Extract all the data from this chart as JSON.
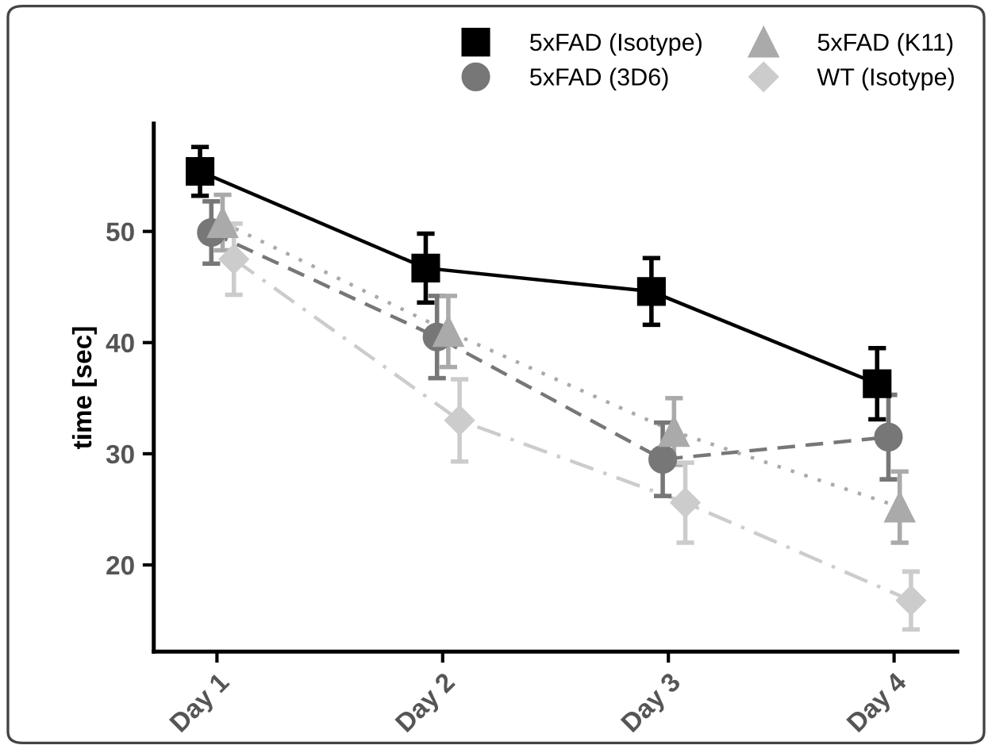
{
  "chart_data": {
    "type": "line",
    "ylabel": "time [sec]",
    "categories": [
      "Day 1",
      "Day 2",
      "Day 3",
      "Day 4"
    ],
    "series": [
      {
        "name": "5xFAD (Isotype)",
        "color": "#000000",
        "marker": "square",
        "line_style": "solid",
        "values": [
          55.4,
          46.7,
          44.6,
          36.3
        ],
        "errors": [
          2.2,
          3.1,
          3.0,
          3.2
        ]
      },
      {
        "name": "5xFAD (3D6)",
        "color": "#777777",
        "marker": "circle",
        "line_style": "dashed",
        "values": [
          49.9,
          40.5,
          29.5,
          31.5
        ],
        "errors": [
          2.8,
          3.7,
          3.3,
          3.8
        ]
      },
      {
        "name": "5xFAD (K11)",
        "color": "#aaaaaa",
        "marker": "triangle",
        "line_style": "dotted",
        "values": [
          50.8,
          41.0,
          32.0,
          25.2
        ],
        "errors": [
          2.5,
          3.2,
          3.0,
          3.2
        ]
      },
      {
        "name": "WT (Isotype)",
        "color": "#cccccc",
        "marker": "diamond",
        "line_style": "dashdot",
        "values": [
          47.5,
          33.0,
          25.6,
          16.8
        ],
        "errors": [
          3.2,
          3.7,
          3.6,
          2.6
        ]
      }
    ],
    "ylim": [
      12.2,
      59.7
    ],
    "yticks": [
      20,
      30,
      40,
      50
    ],
    "grid": false,
    "legend": "top right"
  }
}
